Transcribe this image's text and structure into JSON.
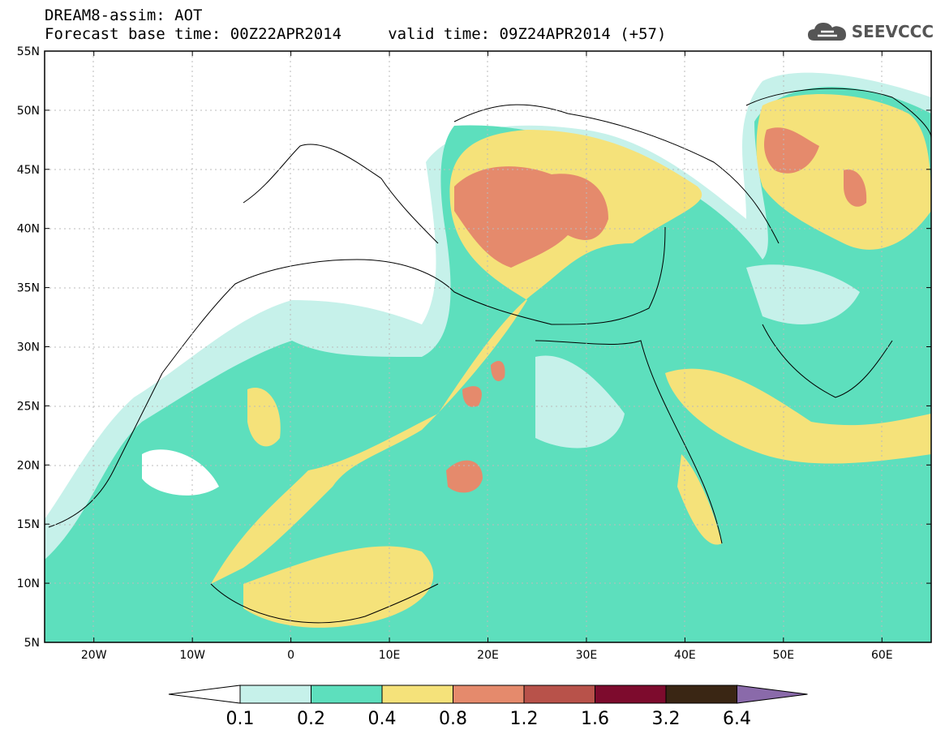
{
  "header": {
    "title_line1": "DREAM8-assim: AOT",
    "title_line2": "Forecast base time: 00Z22APR2014     valid time: 09Z24APR2014 (+57)"
  },
  "logo": {
    "text": "SEEVCCC",
    "icon": "cloud-icon"
  },
  "map": {
    "lat_ticks": [
      "55N",
      "50N",
      "45N",
      "40N",
      "35N",
      "30N",
      "25N",
      "20N",
      "15N",
      "10N",
      "5N"
    ],
    "lon_ticks": [
      "20W",
      "10W",
      "0",
      "10E",
      "20E",
      "30E",
      "40E",
      "50E",
      "60E"
    ],
    "lon_range": [
      -25,
      65
    ],
    "lat_range": [
      5,
      55
    ]
  },
  "colorbar": {
    "labels": [
      "0.1",
      "0.2",
      "0.4",
      "0.8",
      "1.2",
      "1.6",
      "3.2",
      "6.4"
    ],
    "colors": [
      "#c6f1ea",
      "#5ddfbd",
      "#f5e27a",
      "#e58a6c",
      "#b8524a",
      "#7d0b2d",
      "#3a2614"
    ],
    "under_color": "#ffffff",
    "over_color": "#8a6aaa"
  }
}
